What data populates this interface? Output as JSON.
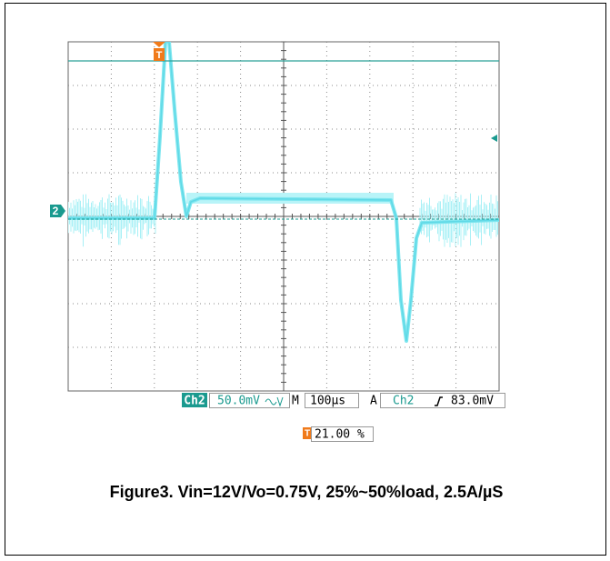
{
  "scope": {
    "trigger_marker": "T",
    "channel_marker": "2",
    "readout": {
      "channel": "Ch2",
      "scale": "50.0mV",
      "timebase_prefix": "M",
      "timebase": "100µs",
      "trigger_mode": "A",
      "trigger_channel": "Ch2",
      "trigger_level": "83.0mV"
    },
    "trigger_position": "21.00 %"
  },
  "caption": "Figure3. Vin=12V/Vo=0.75V, 25%~50%load, 2.5A/µS"
}
